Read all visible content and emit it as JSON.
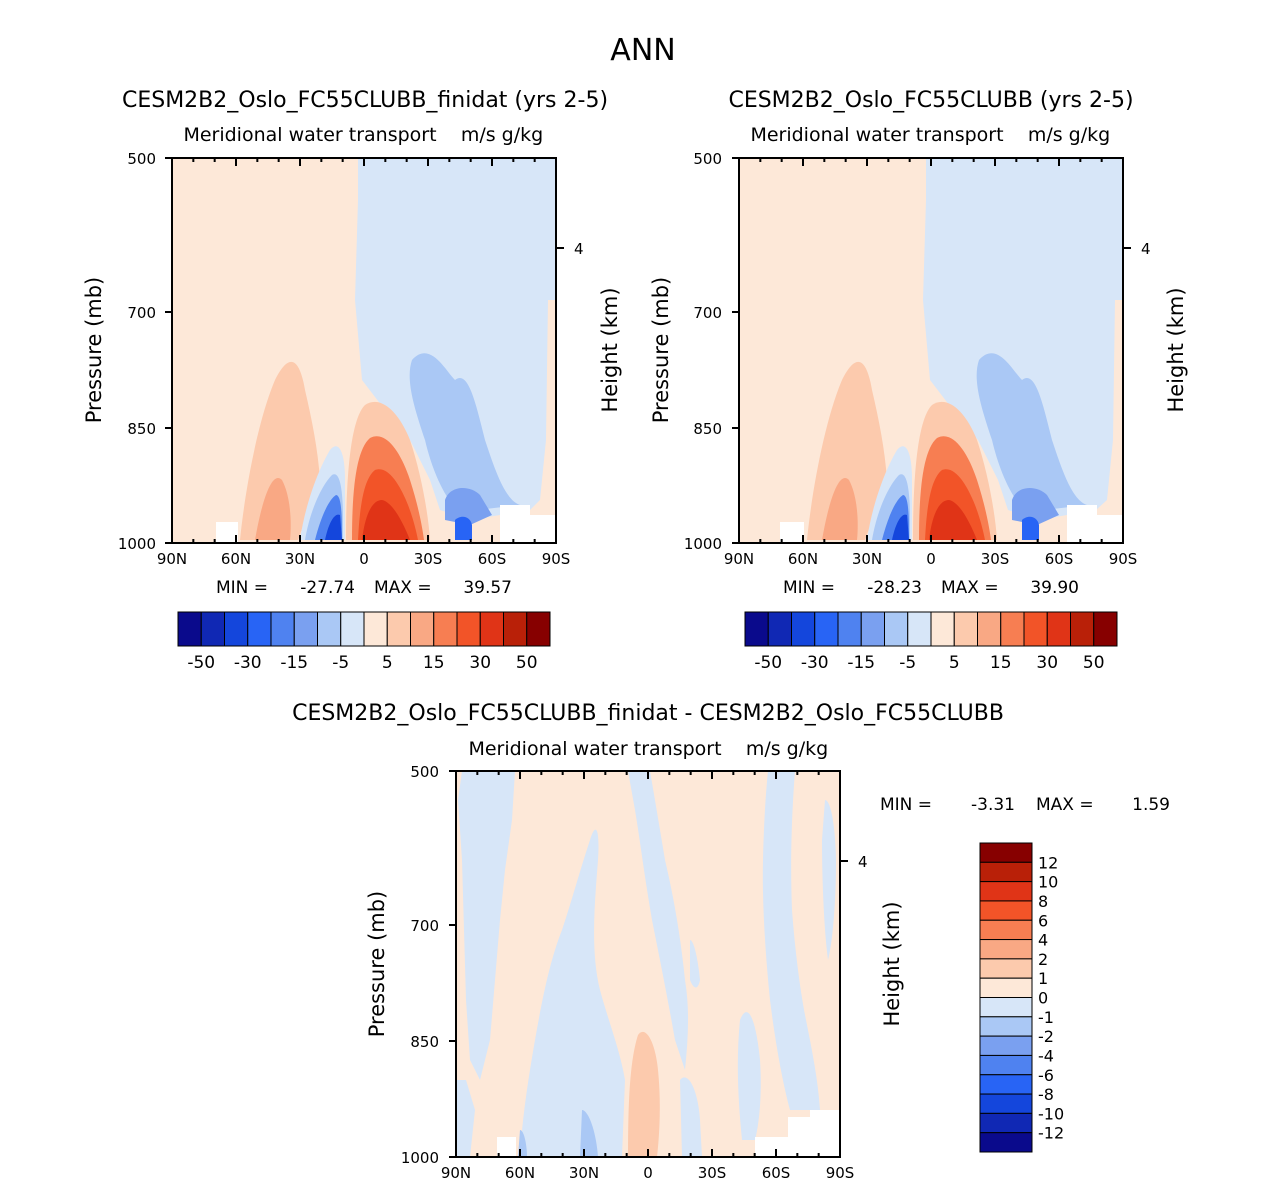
{
  "main_title": "ANN",
  "chart_data": [
    {
      "id": "p1",
      "type": "heatmap",
      "title": "CESM2B2_Oslo_FC55CLUBB_finidat (yrs 2-5)",
      "subtitle_left": "Meridional water transport",
      "subtitle_right": "m/s g/kg",
      "ylabel": "Pressure (mb)",
      "ylabel_right": "Height (km)",
      "y_ticks": [
        "500",
        "700",
        "850",
        "1000"
      ],
      "y_right_ticks": [
        "4"
      ],
      "x_ticks": [
        "90N",
        "60N",
        "30N",
        "0",
        "30S",
        "60S",
        "90S"
      ],
      "xlim": [
        90,
        -90
      ],
      "ylim": [
        1000,
        500
      ],
      "min_label": "MIN =",
      "min_value": "-27.74",
      "max_label": "MAX =",
      "max_value": "39.57",
      "colorbar_labels": [
        "-50",
        "-30",
        "-15",
        "-5",
        "5",
        "15",
        "30",
        "50"
      ]
    },
    {
      "id": "p2",
      "type": "heatmap",
      "title": "CESM2B2_Oslo_FC55CLUBB (yrs 2-5)",
      "subtitle_left": "Meridional water transport",
      "subtitle_right": "m/s g/kg",
      "ylabel": "Pressure (mb)",
      "ylabel_right": "Height (km)",
      "y_ticks": [
        "500",
        "700",
        "850",
        "1000"
      ],
      "y_right_ticks": [
        "4"
      ],
      "x_ticks": [
        "90N",
        "60N",
        "30N",
        "0",
        "30S",
        "60S",
        "90S"
      ],
      "xlim": [
        90,
        -90
      ],
      "ylim": [
        1000,
        500
      ],
      "min_label": "MIN =",
      "min_value": "-28.23",
      "max_label": "MAX =",
      "max_value": "39.90",
      "colorbar_labels": [
        "-50",
        "-30",
        "-15",
        "-5",
        "5",
        "15",
        "30",
        "50"
      ]
    },
    {
      "id": "p3",
      "type": "heatmap",
      "title": "CESM2B2_Oslo_FC55CLUBB_finidat - CESM2B2_Oslo_FC55CLUBB",
      "subtitle_left": "Meridional water transport",
      "subtitle_right": "m/s g/kg",
      "ylabel": "Pressure (mb)",
      "ylabel_right": "Height (km)",
      "y_ticks": [
        "500",
        "700",
        "850",
        "1000"
      ],
      "y_right_ticks": [
        "4"
      ],
      "x_ticks": [
        "90N",
        "60N",
        "30N",
        "0",
        "30S",
        "60S",
        "90S"
      ],
      "xlim": [
        90,
        -90
      ],
      "ylim": [
        1000,
        500
      ],
      "min_label": "MIN =",
      "min_value": "-3.31",
      "max_label": "MAX =",
      "max_value": "1.59",
      "colorbar_labels": [
        "12",
        "10",
        "8",
        "6",
        "4",
        "2",
        "1",
        "0",
        "-1",
        "-2",
        "-4",
        "-6",
        "-8",
        "-10",
        "-12"
      ]
    }
  ],
  "colors": {
    "scale16": [
      "#0a0a8c",
      "#1028b4",
      "#1446dc",
      "#2864f5",
      "#4f82f0",
      "#7aa0f0",
      "#aac8f5",
      "#d7e6f8",
      "#fde8d8",
      "#fccaad",
      "#f9a884",
      "#f77e52",
      "#f25428",
      "#e03417",
      "#b92008",
      "#870000"
    ],
    "scale16_diff": [
      "#870000",
      "#b92008",
      "#e03417",
      "#f25428",
      "#f77e52",
      "#f9a884",
      "#fccaad",
      "#fde8d8",
      "#d7e6f8",
      "#aac8f5",
      "#7aa0f0",
      "#4f82f0",
      "#2864f5",
      "#1446dc",
      "#1028b4",
      "#0a0a8c"
    ]
  }
}
